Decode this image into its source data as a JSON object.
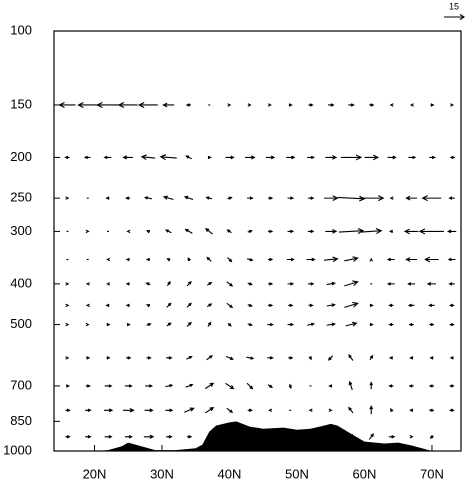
{
  "chart_data": {
    "type": "vector",
    "x": [
      16,
      19,
      22,
      25,
      28,
      31,
      34,
      37,
      40,
      43,
      46,
      49,
      52,
      55,
      58,
      61,
      64,
      67,
      70,
      73
    ],
    "levels": [
      150,
      200,
      250,
      300,
      350,
      400,
      450,
      500,
      600,
      700,
      800,
      925
    ],
    "u": [
      [
        -12,
        -14,
        -16,
        -14,
        -14,
        -8,
        -3,
        0,
        1,
        1,
        1,
        2,
        3,
        4,
        4,
        3,
        -1,
        -1,
        2,
        1
      ],
      [
        -3,
        -4,
        -5,
        -7,
        -10,
        -12,
        -4,
        2,
        6,
        7,
        6,
        6,
        5,
        8,
        15,
        10,
        6,
        5,
        4,
        3
      ],
      [
        1,
        0,
        -2,
        -3,
        -5,
        -7,
        -6,
        -4,
        3,
        4,
        3,
        4,
        4,
        10,
        20,
        18,
        -1,
        -8,
        -14,
        -4
      ],
      [
        0,
        1,
        0,
        -1,
        -2,
        -4,
        -5,
        -5,
        -3,
        3,
        3,
        4,
        4,
        8,
        18,
        15,
        -2,
        -10,
        -18,
        -6
      ],
      [
        0,
        0,
        -1,
        -2,
        -2,
        -2,
        -1,
        -3,
        3,
        4,
        3,
        5,
        6,
        10,
        10,
        0,
        -5,
        -8,
        -10,
        -5
      ],
      [
        1,
        -1,
        -1,
        -2,
        -3,
        2,
        3,
        3,
        4,
        3,
        3,
        4,
        4,
        6,
        10,
        0,
        -5,
        -5,
        -6,
        -4
      ],
      [
        1,
        -1,
        -2,
        -2,
        -2,
        3,
        3,
        3,
        4,
        3,
        3,
        3,
        3,
        6,
        10,
        2,
        -3,
        -4,
        -4,
        -3
      ],
      [
        1,
        1,
        2,
        2,
        3,
        3,
        3,
        2,
        2,
        3,
        4,
        4,
        5,
        6,
        8,
        2,
        -3,
        -3,
        -3,
        -3
      ],
      [
        1,
        2,
        2,
        3,
        3,
        4,
        4,
        4,
        5,
        5,
        4,
        3,
        1,
        -3,
        -3,
        2,
        -2,
        -2,
        -2,
        -2
      ],
      [
        2,
        3,
        5,
        5,
        5,
        5,
        5,
        6,
        6,
        4,
        3,
        1,
        0,
        -2,
        -2,
        0,
        -3,
        -3,
        -3,
        -3
      ],
      [
        3,
        4,
        6,
        8,
        6,
        5,
        7,
        6,
        4,
        3,
        -1,
        0,
        -1,
        1,
        -3,
        0,
        -1,
        -2,
        -3,
        -3
      ],
      [
        3,
        4,
        5,
        5,
        7,
        4,
        3,
        null,
        null,
        null,
        null,
        null,
        null,
        null,
        2,
        3,
        4,
        1,
        -2,
        null
      ]
    ],
    "w": [
      [
        0,
        0,
        0,
        0,
        0,
        0,
        0,
        0,
        0,
        0,
        0,
        0,
        0,
        0,
        0,
        0,
        0,
        0,
        0,
        0
      ],
      [
        0,
        0,
        0,
        0,
        1,
        1,
        2,
        0,
        0,
        0,
        0,
        0,
        0,
        0,
        0,
        0,
        0,
        0,
        0,
        0
      ],
      [
        0,
        0,
        0,
        0,
        1,
        2,
        2,
        1,
        1,
        0,
        0,
        0,
        0,
        0,
        -1,
        0,
        0,
        0,
        0,
        0
      ],
      [
        0,
        0,
        0,
        0,
        1,
        2,
        3,
        4,
        2,
        1,
        0,
        0,
        0,
        0,
        1,
        1,
        0,
        0,
        0,
        0
      ],
      [
        0,
        0,
        0,
        0,
        0,
        1,
        2,
        3,
        -3,
        -1,
        0,
        0,
        0,
        1,
        2,
        1,
        0,
        0,
        0,
        0
      ],
      [
        0,
        0,
        0,
        0,
        1,
        3,
        3,
        2,
        -3,
        -1,
        0,
        0,
        0,
        1,
        3,
        0,
        0,
        0,
        0,
        0
      ],
      [
        0,
        0,
        0,
        0,
        1,
        3,
        3,
        2,
        -3,
        -1,
        0,
        0,
        0,
        1,
        3,
        0,
        0,
        0,
        0,
        0
      ],
      [
        0,
        0,
        0,
        0,
        1,
        2,
        3,
        3,
        -2,
        -1,
        0,
        0,
        1,
        1,
        2,
        0,
        0,
        0,
        0,
        0
      ],
      [
        0,
        0,
        0,
        0,
        0,
        0,
        2,
        3,
        -2,
        -1,
        0,
        0,
        -2,
        -3,
        4,
        3,
        0,
        0,
        0,
        0
      ],
      [
        0,
        0,
        0,
        0,
        0,
        1,
        2,
        4,
        -4,
        -4,
        -2,
        -3,
        0,
        0,
        6,
        5,
        0,
        0,
        0,
        0
      ],
      [
        0,
        0,
        0,
        0,
        0,
        0,
        3,
        4,
        -3,
        0,
        0,
        0,
        0,
        0,
        4,
        6,
        2,
        0,
        0,
        0
      ],
      [
        0,
        0,
        0,
        0,
        0,
        0,
        0,
        null,
        null,
        null,
        null,
        null,
        null,
        null,
        3,
        4,
        0,
        0,
        -2,
        null
      ]
    ],
    "reference_vector": 15,
    "xlim": [
      14,
      74.3
    ],
    "ylim": [
      1000,
      100
    ],
    "log_y": true,
    "xticks": [
      {
        "value": 20,
        "label": "20N"
      },
      {
        "value": 30,
        "label": "30N"
      },
      {
        "value": 40,
        "label": "40N"
      },
      {
        "value": 50,
        "label": "50N"
      },
      {
        "value": 60,
        "label": "60N"
      },
      {
        "value": 70,
        "label": "70N"
      }
    ],
    "yticks": [
      100,
      150,
      200,
      250,
      300,
      400,
      500,
      700,
      850,
      1000
    ],
    "color": "#000000",
    "terrain": {
      "x": [
        14,
        20,
        22,
        24,
        25,
        27,
        29,
        32,
        35,
        36,
        37,
        38,
        40,
        41,
        43,
        45,
        48,
        50,
        52,
        54,
        55,
        56,
        58,
        60,
        63,
        65,
        67,
        70,
        74.3
      ],
      "values": [
        1000,
        1000,
        995,
        975,
        955,
        975,
        995,
        995,
        985,
        965,
        900,
        870,
        855,
        850,
        875,
        885,
        880,
        890,
        885,
        870,
        862,
        870,
        910,
        950,
        960,
        955,
        970,
        1000,
        1000
      ]
    }
  }
}
